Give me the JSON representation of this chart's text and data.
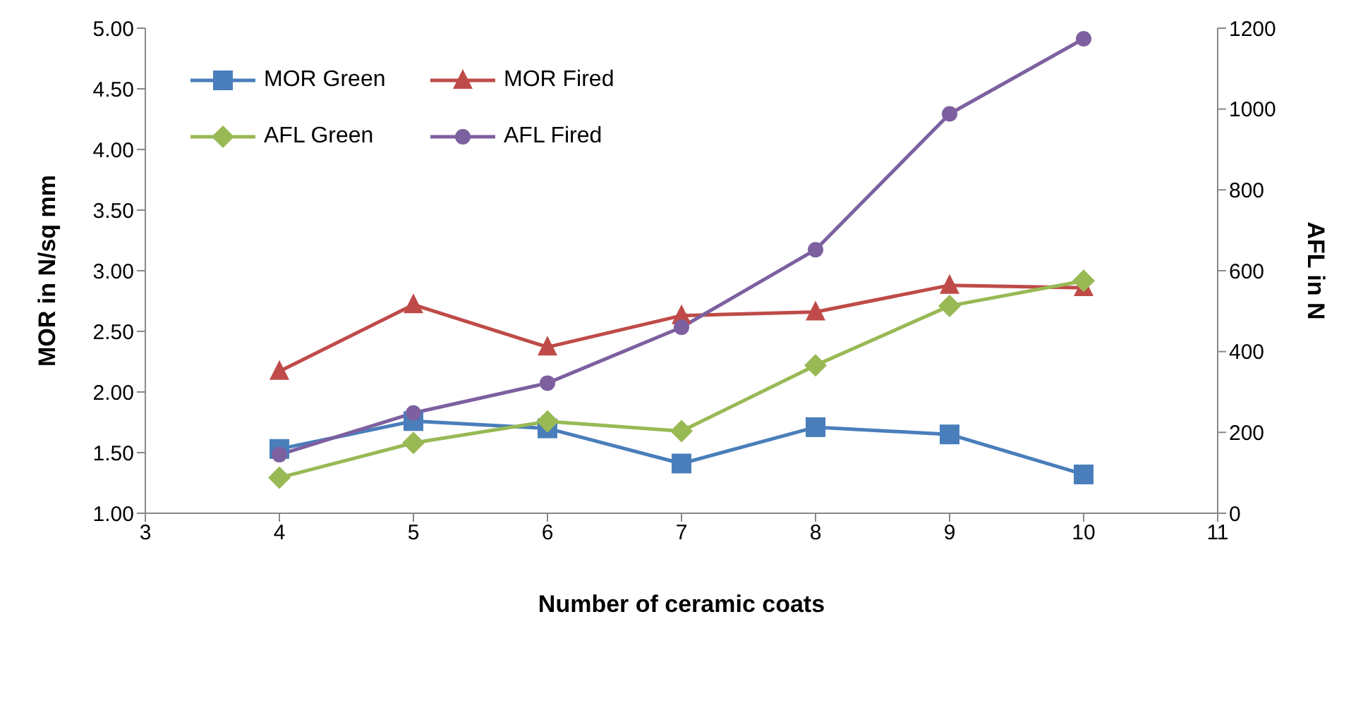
{
  "chart_data": {
    "type": "line",
    "xlabel": "Number of ceramic coats",
    "ylabel": "MOR in N/sq mm",
    "y2label": "AFL  in N",
    "x": [
      4,
      5,
      6,
      7,
      8,
      9,
      10
    ],
    "series": [
      {
        "name": "MOR Green",
        "color": "#4a7ebb",
        "marker": "square",
        "values": [
          1.53,
          1.76,
          1.7,
          1.41,
          1.71,
          1.65,
          1.32
        ]
      },
      {
        "name": "MOR Fired",
        "color": "#be4b48",
        "marker": "triangle",
        "values": [
          2.17,
          2.72,
          2.37,
          2.63,
          2.66,
          2.88,
          2.86
        ]
      },
      {
        "name": "AFL Green",
        "color": "#98b954",
        "marker": "diamond",
        "axis": "y2",
        "values": [
          88,
          174,
          227,
          203,
          366,
          513,
          575
        ]
      },
      {
        "name": "AFL Fired",
        "color": "#7d60a0",
        "marker": "circle",
        "axis": "y2",
        "values": [
          145,
          248,
          322,
          460,
          652,
          988,
          1174
        ]
      }
    ],
    "xlim": [
      3,
      11
    ],
    "xticks": [
      3,
      4,
      5,
      6,
      7,
      8,
      9,
      10,
      11
    ],
    "ylim": [
      1,
      5
    ],
    "yticks": [
      {
        "value": 1,
        "label": "1.00"
      },
      {
        "value": 1.5,
        "label": "1.50"
      },
      {
        "value": 2,
        "label": "2.00"
      },
      {
        "value": 2.5,
        "label": "2.50"
      },
      {
        "value": 3,
        "label": "3.00"
      },
      {
        "value": 3.5,
        "label": "3.50"
      },
      {
        "value": 4,
        "label": "4.00"
      },
      {
        "value": 4.5,
        "label": "4.50"
      },
      {
        "value": 5,
        "label": "5.00"
      }
    ],
    "y2lim": [
      0,
      1200
    ],
    "y2ticks": [
      0,
      200,
      400,
      600,
      800,
      1000,
      1200
    ],
    "grid": false,
    "legend": "top left",
    "line_style": "solid"
  }
}
